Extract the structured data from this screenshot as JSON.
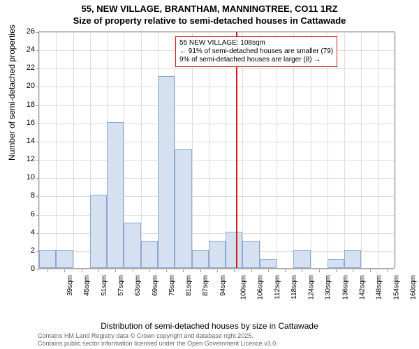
{
  "chart": {
    "type": "histogram",
    "title_line1": "55, NEW VILLAGE, BRANTHAM, MANNINGTREE, CO11 1RZ",
    "title_line2": "Size of property relative to semi-detached houses in Cattawade",
    "title_fontsize": 13,
    "ylabel": "Number of semi-detached properties",
    "xlabel": "Distribution of semi-detached houses by size in Cattawade",
    "label_fontsize": 12,
    "ylim": [
      0,
      26
    ],
    "ytick_step": 2,
    "yticks": [
      0,
      2,
      4,
      6,
      8,
      10,
      12,
      14,
      16,
      18,
      20,
      22,
      24,
      26
    ],
    "x_categories": [
      "39sqm",
      "45sqm",
      "51sqm",
      "57sqm",
      "63sqm",
      "69sqm",
      "75sqm",
      "81sqm",
      "87sqm",
      "94sqm",
      "100sqm",
      "106sqm",
      "112sqm",
      "118sqm",
      "124sqm",
      "130sqm",
      "136sqm",
      "142sqm",
      "148sqm",
      "154sqm",
      "160sqm"
    ],
    "values": [
      2,
      2,
      0,
      8,
      16,
      5,
      3,
      21,
      13,
      2,
      3,
      4,
      3,
      1,
      0,
      2,
      0,
      1,
      2,
      0,
      0
    ],
    "bar_color": "#d5e1f0",
    "bar_border_color": "#8aa8d0",
    "background_color": "#ffffff",
    "grid_color": "#dddddd",
    "axis_color": "#999999",
    "tick_fontsize": 11,
    "x_tick_fontsize": 10,
    "marker": {
      "position_index": 11.6,
      "color": "#d02020",
      "width": 2
    },
    "annotation": {
      "text_line1": "55 NEW VILLAGE: 108sqm",
      "text_line2": "← 91% of semi-detached houses are smaller (79)",
      "text_line3": "9% of semi-detached houses are larger (8) →",
      "border_color": "#d02020",
      "fontsize": 10
    },
    "attribution_line1": "Contains HM Land Registry data © Crown copyright and database right 2025.",
    "attribution_line2": "Contains public sector information licensed under the Open Government Licence v3.0.",
    "attribution_color": "#666666",
    "attribution_fontsize": 9
  }
}
